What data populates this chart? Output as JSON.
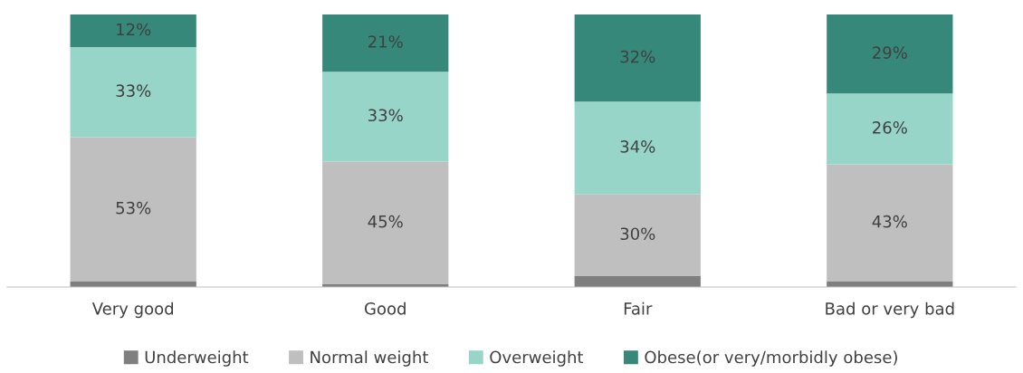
{
  "chart_data": {
    "type": "bar",
    "stacked": true,
    "categories": [
      "Very good",
      "Good",
      "Fair",
      "Bad or very bad"
    ],
    "series": [
      {
        "name": "Underweight",
        "color": "#7f7f7f",
        "values": [
          2,
          1,
          4,
          2
        ],
        "value_labels": [
          null,
          null,
          null,
          null
        ]
      },
      {
        "name": "Normal weight",
        "color": "#bfbfbf",
        "values": [
          53,
          45,
          30,
          43
        ],
        "value_labels": [
          "53%",
          "45%",
          "30%",
          "43%"
        ]
      },
      {
        "name": "Overweight",
        "color": "#96d5c7",
        "values": [
          33,
          33,
          34,
          26
        ],
        "value_labels": [
          "33%",
          "33%",
          "34%",
          "26%"
        ]
      },
      {
        "name": "Obese(or very/morbidly obese)",
        "color": "#36897a",
        "values": [
          12,
          21,
          32,
          29
        ],
        "value_labels": [
          "12%",
          "21%",
          "32%",
          "29%"
        ]
      }
    ],
    "legend": "bottom",
    "grid": false
  }
}
